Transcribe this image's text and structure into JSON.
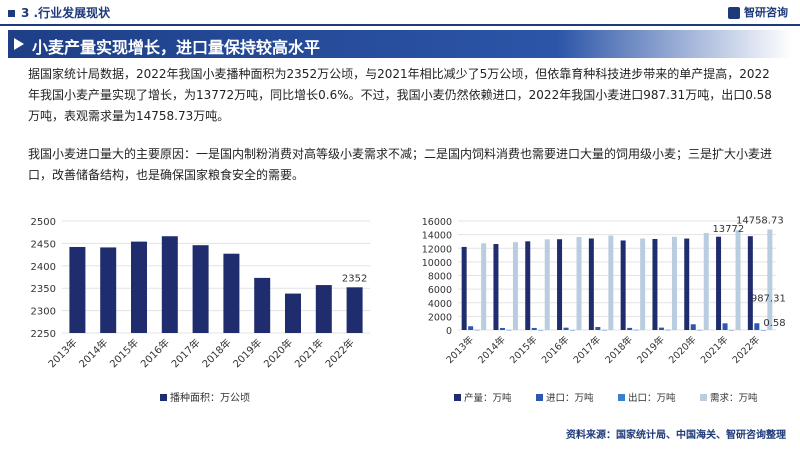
{
  "header": {
    "section": "3 .行业发展现状",
    "brand": "智研咨询"
  },
  "banner": {
    "title": "小麦产量实现增长，进口量保持较高水平"
  },
  "paragraphs": [
    "据国家统计局数据，2022年我国小麦播种面积为2352万公顷，与2021年相比减少了5万公顷，但依靠育种科技进步带来的单产提高，2022年我国小麦产量实现了增长，为13772万吨，同比增长0.6%。不过，我国小麦仍然依赖进口，2022年我国小麦进口987.31万吨，出口0.58万吨，表观需求量为14758.73万吨。",
    "我国小麦进口量大的主要原因：一是国内制粉消费对高等级小麦需求不减；二是国内饲料消费也需要进口大量的饲用级小麦；三是扩大小麦进口，改善储备结构，也是确保国家粮食安全的需要。"
  ],
  "source": "资料来源：国家统计局、中国海关、智研咨询整理",
  "watermark": "智研咨询",
  "chart_data": [
    {
      "type": "bar",
      "categories": [
        "2013年",
        "2014年",
        "2015年",
        "2016年",
        "2017年",
        "2018年",
        "2019年",
        "2020年",
        "2021年",
        "2022年"
      ],
      "series": [
        {
          "name": "播种面积：万公顷",
          "values": [
            2442,
            2441,
            2454,
            2466,
            2446,
            2427,
            2373,
            2338,
            2357,
            2352
          ],
          "color": "#1f2d6e"
        }
      ],
      "ylim": [
        2250,
        2500
      ],
      "yticks": [
        "2250",
        "2300",
        "2350",
        "2400",
        "2450",
        "2500"
      ],
      "data_labels": [
        {
          "index": 9,
          "text": "2352"
        }
      ],
      "legend": "bottom"
    },
    {
      "type": "bar",
      "categories": [
        "2013年",
        "2014年",
        "2015年",
        "2016年",
        "2017年",
        "2018年",
        "2019年",
        "2020年",
        "2021年",
        "2022年"
      ],
      "series": [
        {
          "name": "产量：万吨",
          "values": [
            12193,
            12621,
            13019,
            13327,
            13433,
            13144,
            13360,
            13425,
            13695,
            13772
          ],
          "color": "#1f2d6e"
        },
        {
          "name": "进口：万吨",
          "values": [
            553,
            300,
            301,
            341,
            442,
            310,
            349,
            838,
            977,
            987.31
          ],
          "color": "#2e57b0"
        },
        {
          "name": "出口：万吨",
          "values": [
            28,
            19,
            12,
            11,
            18,
            29,
            31,
            18,
            8,
            0.58
          ],
          "color": "#3a7fd0"
        },
        {
          "name": "需求：万吨",
          "values": [
            12718,
            12902,
            13308,
            13657,
            13857,
            13425,
            13678,
            14245,
            14664,
            14758.73
          ],
          "color": "#b9cde0"
        }
      ],
      "ylim": [
        0,
        16000
      ],
      "yticks": [
        "0",
        "2000",
        "4000",
        "6000",
        "8000",
        "10000",
        "12000",
        "14000",
        "16000"
      ],
      "data_labels": [
        {
          "series": 3,
          "index": 9,
          "text": "14758.73"
        },
        {
          "series": 0,
          "index": 9,
          "text": "13772"
        },
        {
          "series": 1,
          "index": 9,
          "text": "987.31"
        },
        {
          "series": 2,
          "index": 9,
          "text": "0.58"
        }
      ],
      "legend": "bottom"
    }
  ]
}
